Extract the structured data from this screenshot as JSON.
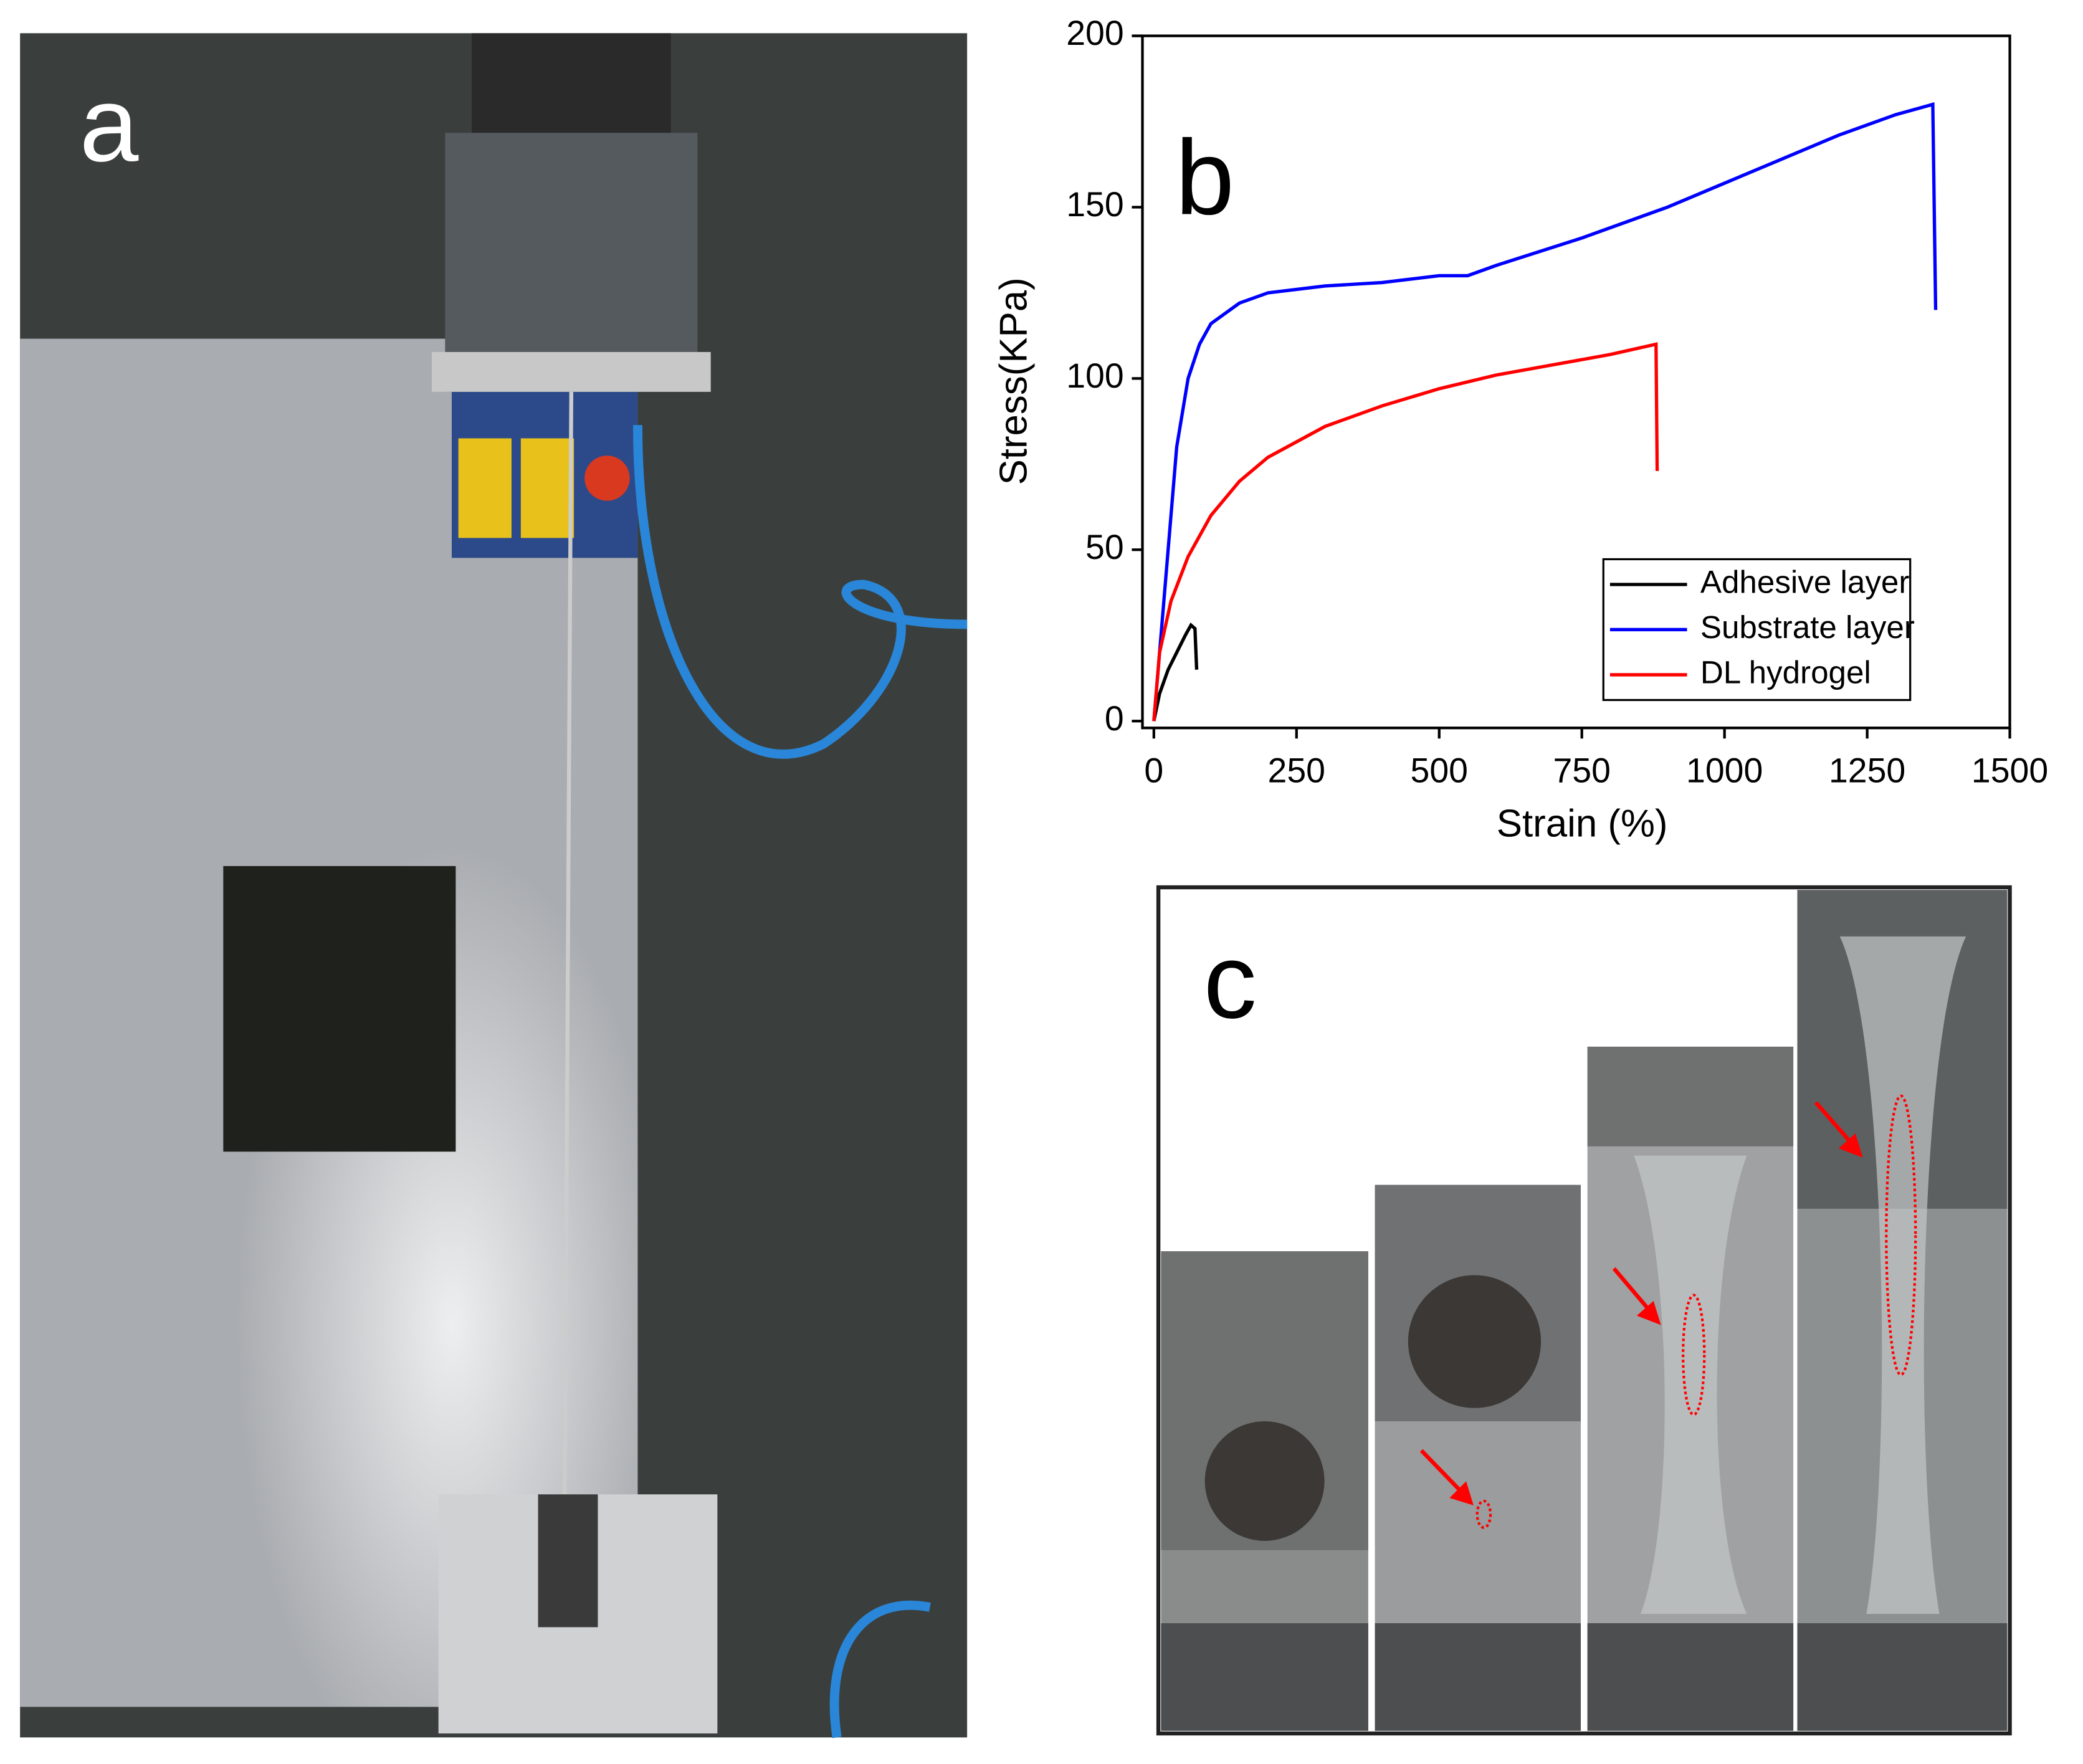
{
  "panels": {
    "a": "a",
    "c": "c"
  },
  "chart_data": {
    "type": "line",
    "panel_label": "b",
    "x_label": "Strain (%)",
    "y_label": "Stress(KPa)",
    "xlim": [
      -20,
      1500
    ],
    "ylim": [
      -2,
      200
    ],
    "xticks": [
      0,
      250,
      500,
      750,
      1000,
      1250,
      1500
    ],
    "yticks": [
      0,
      50,
      100,
      150,
      200
    ],
    "legend": "lower right",
    "series": [
      {
        "name": "Adhesive layer",
        "color": "#000000",
        "x": [
          0,
          10,
          25,
          40,
          55,
          65,
          72,
          75
        ],
        "values": [
          0,
          8,
          15,
          20,
          25,
          28,
          27,
          15
        ]
      },
      {
        "name": "Substrate layer",
        "color": "#0000ff",
        "x": [
          0,
          20,
          40,
          60,
          80,
          100,
          150,
          200,
          300,
          400,
          500,
          550,
          600,
          750,
          900,
          1000,
          1100,
          1200,
          1300,
          1365,
          1370
        ],
        "values": [
          0,
          40,
          80,
          100,
          110,
          116,
          122,
          125,
          127,
          128,
          130,
          130,
          133,
          141,
          150,
          157,
          164,
          171,
          177,
          180,
          120
        ]
      },
      {
        "name": "DL hydrogel",
        "color": "#ff0000",
        "x": [
          0,
          10,
          30,
          60,
          100,
          150,
          200,
          300,
          400,
          500,
          600,
          700,
          800,
          880,
          882
        ],
        "values": [
          0,
          20,
          35,
          48,
          60,
          70,
          77,
          86,
          92,
          97,
          101,
          104,
          107,
          110,
          73
        ]
      }
    ]
  }
}
